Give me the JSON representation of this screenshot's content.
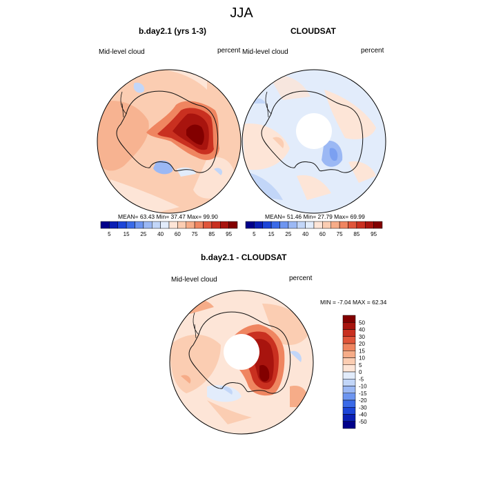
{
  "main_title": "JJA",
  "chart_data": [
    {
      "type": "heatmap",
      "projection": "south-polar stereographic",
      "title": "b.day2.1 (yrs 1-3)",
      "left_label": "Mid-level cloud",
      "right_label": "percent",
      "stats": {
        "mean": "63.43",
        "min": "37.47",
        "max": "99.90",
        "text": "MEAN=  63.43  Min=  37.47  Max=  99.90"
      },
      "colorbar_ticks": [
        "5",
        "15",
        "25",
        "40",
        "60",
        "75",
        "85",
        "95"
      ]
    },
    {
      "type": "heatmap",
      "projection": "south-polar stereographic",
      "title": "CLOUDSAT",
      "left_label": "Mid-level cloud",
      "right_label": "percent",
      "stats": {
        "mean": "51.46",
        "min": "27.79",
        "max": "69.99",
        "text": "MEAN=  51.46  Min=  27.79  Max=  69.99"
      },
      "colorbar_ticks": [
        "5",
        "15",
        "25",
        "40",
        "60",
        "75",
        "85",
        "95"
      ]
    },
    {
      "type": "heatmap",
      "projection": "south-polar stereographic",
      "title": "b.day2.1 - CLOUDSAT",
      "left_label": "Mid-level cloud",
      "right_label": "percent",
      "stats": {
        "min": "-7.04",
        "max": "62.34",
        "text": "MIN =  -7.04 MAX =  62.34"
      },
      "colorbar_ticks": [
        "50",
        "40",
        "30",
        "20",
        "15",
        "10",
        "5",
        "0",
        "-5",
        "-10",
        "-15",
        "-20",
        "-30",
        "-40",
        "-50"
      ]
    }
  ],
  "colors": {
    "scale16": [
      "#00008a",
      "#0a1fb4",
      "#1c45d8",
      "#3a6ae8",
      "#6d95f0",
      "#9bb8f4",
      "#c2d6f8",
      "#e2ecfb",
      "#fde5d7",
      "#fbcdb2",
      "#f6ac88",
      "#ef8560",
      "#e0553a",
      "#c93020",
      "#a8140e",
      "#820000"
    ],
    "diff16": [
      "#820000",
      "#a8140e",
      "#c93020",
      "#e0553a",
      "#ef8560",
      "#f6ac88",
      "#fbcdb2",
      "#fde5d7",
      "#e2ecfb",
      "#c2d6f8",
      "#9bb8f4",
      "#6d95f0",
      "#3a6ae8",
      "#1c45d8",
      "#0a1fb4",
      "#00008a"
    ]
  }
}
